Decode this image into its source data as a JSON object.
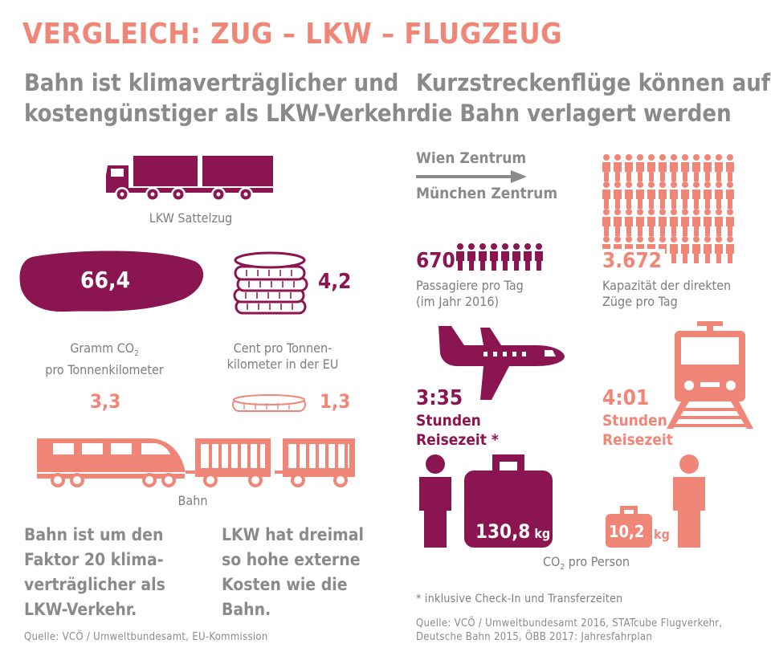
{
  "title": "VERGLEICH: ZUG – LKW – FLUGZEUG",
  "left": {
    "heading_line1": "Bahn ist klimaverträglicher und",
    "heading_line2": "kostengünstiger als LKW-Verkehr",
    "truck_label": "LKW Sattelzug",
    "co2_truck": "66,4",
    "cost_truck": "4,2",
    "co2_label_1": "Gramm CO",
    "co2_label_sub": "2",
    "co2_label_2": "pro Tonnenkilometer",
    "cost_label_1": "Cent pro Tonnen-",
    "cost_label_2": "kilometer in der EU",
    "co2_train": "3,3",
    "cost_train": "1,3",
    "train_label": "Bahn",
    "stmt1_lines": [
      "Bahn ist um den",
      "Faktor 20 klima-",
      "verträglicher als",
      "LKW-Verkehr."
    ],
    "stmt2_lines": [
      "LKW hat dreimal",
      "so hohe externe",
      "Kosten wie die",
      "Bahn."
    ],
    "source": "Quelle: VCÖ / Umweltbundesamt, EU-Kommission"
  },
  "right": {
    "heading_line1": "Kurzstreckenflüge können auf",
    "heading_line2": "die Bahn verlagert werden",
    "route_from": "Wien Zentrum",
    "route_to": "München Zentrum",
    "passengers_value": "670",
    "passengers_label_1": "Passagiere pro Tag",
    "passengers_label_2": "(im Jahr 2016)",
    "capacity_value": "3.672",
    "capacity_label_1": "Kapazität der direkten",
    "capacity_label_2": "Züge pro Tag",
    "flight_time": "3:35",
    "flight_time_label_1": "Stunden",
    "flight_time_label_2": "Reisezeit *",
    "train_time": "4:01",
    "train_time_label_1": "Stunden",
    "train_time_label_2": "Reisezeit",
    "flight_co2_value": "130,8",
    "flight_co2_unit": "kg",
    "train_co2_value": "10,2",
    "train_co2_unit": "kg",
    "co2_person_1": "CO",
    "co2_person_sub": "2",
    "co2_person_2": " pro Person",
    "footnote": "* inklusive Check-In und Transferzeiten",
    "source_line1": "Quelle: VCÖ / Umweltbundesamt 2016, STATcube Flugverkehr,",
    "source_line2": "Deutsche Bahn 2015, ÖBB 2017: Jahresfahrplan"
  },
  "colors": {
    "plum": "#8b1551",
    "coral": "#ef8678",
    "gray": "#8a8a8a"
  }
}
